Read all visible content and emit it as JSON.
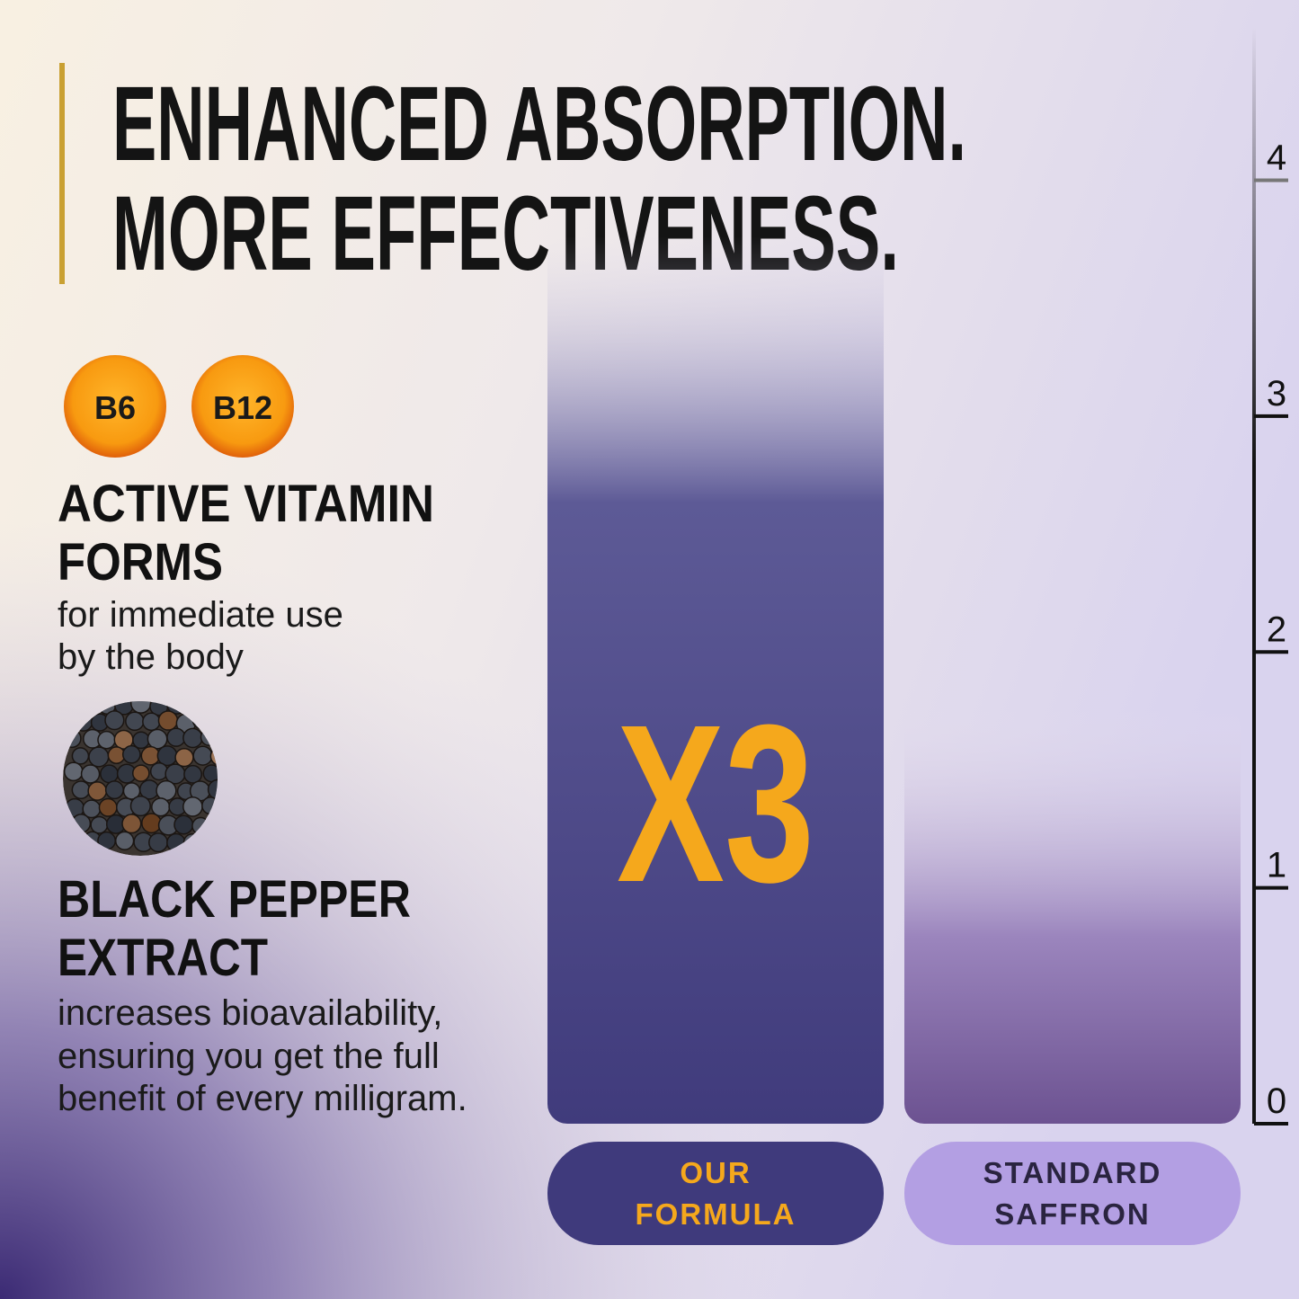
{
  "headline": [
    "ENHANCED ABSORPTION.",
    "MORE EFFECTIVENESS."
  ],
  "features": [
    {
      "badges": [
        "B6",
        "B12"
      ],
      "title": [
        "ACTIVE VITAMIN",
        "FORMS"
      ],
      "description": [
        "for immediate use",
        "by the body"
      ]
    },
    {
      "title": [
        "BLACK PEPPER",
        "EXTRACT"
      ],
      "description": [
        "increases bioavailability,",
        "ensuring you get the full",
        "benefit of every milligram."
      ]
    }
  ],
  "chart_data": {
    "type": "bar",
    "categories": [
      "OUR FORMULA",
      "STANDARD SAFFRON"
    ],
    "values": [
      3,
      1
    ],
    "value_labels": [
      "X3",
      null
    ],
    "ylim": [
      0,
      4.65
    ],
    "yticks": [
      0,
      1,
      2,
      3,
      4
    ]
  }
}
